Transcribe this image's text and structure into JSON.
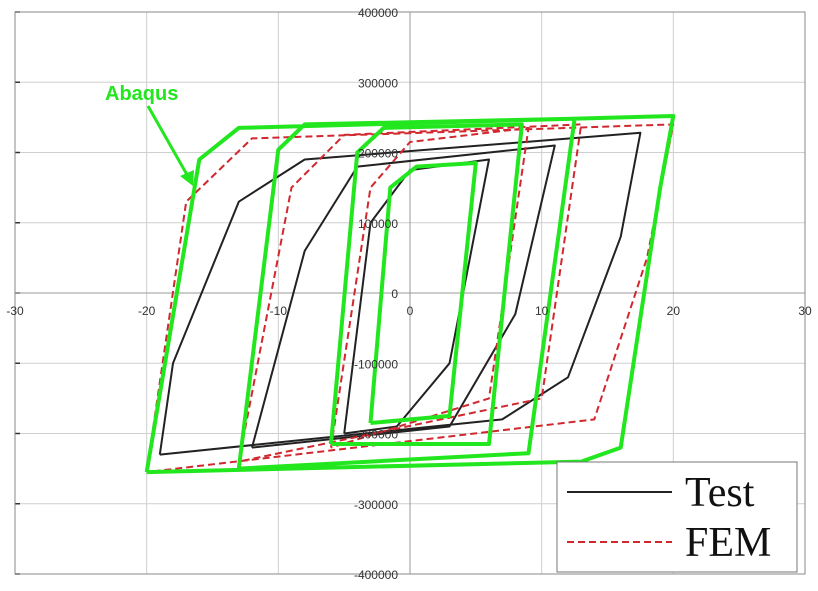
{
  "chart_data": {
    "type": "line",
    "xlim": [
      -30,
      30
    ],
    "ylim": [
      -400000,
      400000
    ],
    "xticks": [
      -30,
      -20,
      -10,
      0,
      10,
      20,
      30
    ],
    "yticks": [
      -400000,
      -300000,
      -200000,
      -100000,
      0,
      100000,
      200000,
      300000,
      400000
    ],
    "grid": true,
    "legend": "lower right",
    "annotation": "Abaqus",
    "series": [
      {
        "name": "Test",
        "color": "#222222",
        "dash": false,
        "legend": true,
        "x": [
          -19,
          -18,
          -13,
          -8,
          17.5,
          16,
          12,
          7,
          -19,
          null,
          -12,
          -8,
          -4,
          11,
          8,
          3,
          -12,
          null,
          -5,
          -3,
          0,
          6,
          3,
          -1,
          -5
        ],
        "values": [
          -230000,
          -100000,
          130000,
          190000,
          228000,
          80000,
          -120000,
          -180000,
          -230000,
          null,
          -220000,
          60000,
          180000,
          210000,
          -30000,
          -190000,
          -220000,
          null,
          -200000,
          100000,
          175000,
          190000,
          -100000,
          -190000,
          -200000
        ]
      },
      {
        "name": "FEM",
        "color": "#d0282e",
        "dash": true,
        "legend": true,
        "x": [
          -20,
          -17,
          -12,
          20,
          18,
          14,
          -20,
          null,
          -13,
          -9,
          -5,
          13,
          10,
          -13,
          null,
          -6,
          -3,
          0,
          9,
          6,
          -6
        ],
        "values": [
          -255000,
          130000,
          220000,
          240000,
          50000,
          -180000,
          -255000,
          null,
          -240000,
          150000,
          225000,
          240000,
          -150000,
          -240000,
          null,
          -220000,
          150000,
          215000,
          235000,
          -150000,
          -220000
        ]
      },
      {
        "name": "Abaqus",
        "color": "#22e61e",
        "dash": false,
        "legend": false,
        "x": [
          -20,
          -16,
          -13,
          20,
          19,
          16,
          13,
          -20,
          null,
          -13,
          -10,
          -8,
          12.5,
          9,
          -13,
          null,
          -6,
          -4,
          -2,
          8.5,
          6,
          -6,
          null,
          -3,
          -1.5,
          0.5,
          5,
          3,
          -3
        ],
        "values": [
          -255000,
          190000,
          235000,
          252000,
          150000,
          -220000,
          -240000,
          -255000,
          null,
          -250000,
          204000,
          240000,
          248000,
          -228000,
          -250000,
          null,
          -215000,
          200000,
          235000,
          240000,
          -215000,
          -215000,
          null,
          -185000,
          150000,
          180000,
          185000,
          -175000,
          -185000
        ]
      }
    ]
  }
}
